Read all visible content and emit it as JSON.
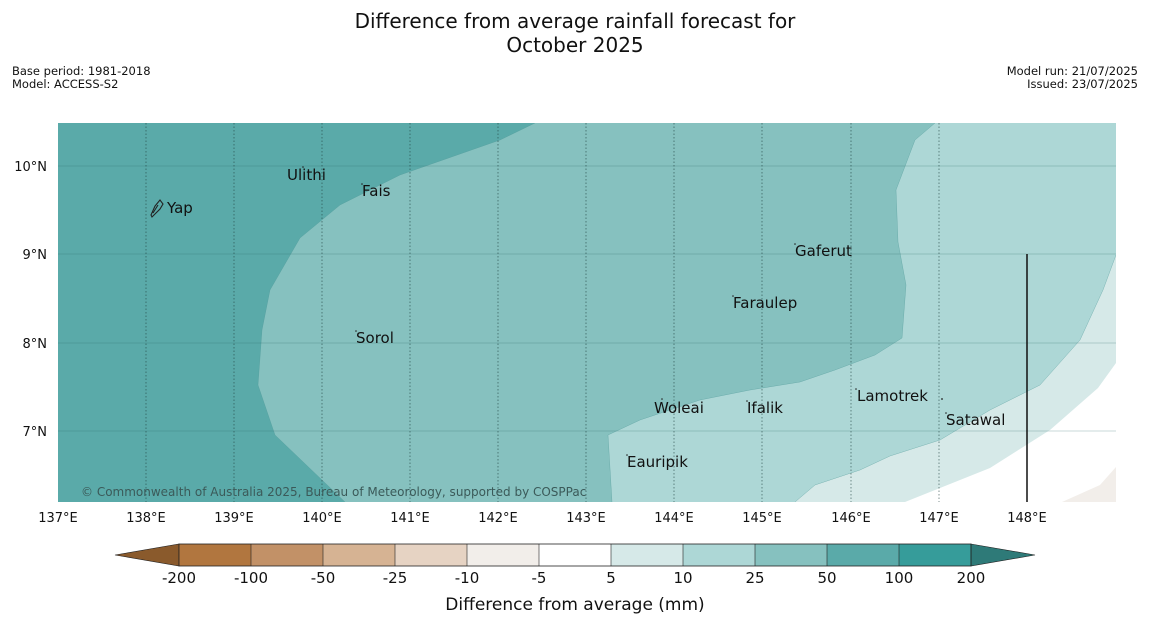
{
  "header": {
    "title_line1": "Difference from average rainfall forecast for",
    "title_line2": "October 2025",
    "base_period": "Base period: 1981-2018",
    "model": "Model: ACCESS-S2",
    "model_run": "Model run: 21/07/2025",
    "issued": "Issued: 23/07/2025"
  },
  "map": {
    "copyright": "© Commonwealth of Australia 2025, Bureau of Meteorology, supported by COSPPac",
    "lat_labels": [
      "10°N",
      "9°N",
      "8°N",
      "7°N"
    ],
    "lon_labels": [
      "137°E",
      "138°E",
      "139°E",
      "140°E",
      "141°E",
      "142°E",
      "143°E",
      "144°E",
      "145°E",
      "146°E",
      "147°E",
      "148°E"
    ],
    "places": [
      {
        "name": "Yap"
      },
      {
        "name": "Ulithi"
      },
      {
        "name": "Fais"
      },
      {
        "name": "Gaferut"
      },
      {
        "name": "Faraulep"
      },
      {
        "name": "Sorol"
      },
      {
        "name": "Lamotrek"
      },
      {
        "name": "Woleai"
      },
      {
        "name": "Ifalik"
      },
      {
        "name": "Satawal"
      },
      {
        "name": "Eauripik"
      }
    ]
  },
  "legend": {
    "title": "Difference from average (mm)",
    "ticks": [
      "-200",
      "-100",
      "-50",
      "-25",
      "-10",
      "-5",
      "5",
      "10",
      "25",
      "50",
      "100",
      "200"
    ],
    "colors": {
      "lt_-200": "#8a5a2c",
      "-200_-100": "#b1763f",
      "-100_-50": "#c29167",
      "-50_-25": "#d6b393",
      "-25_-10": "#e6d3c3",
      "-10_-5": "#f2eeea",
      "-5_5": "#ffffff",
      "5_10": "#d6e9e8",
      "10_25": "#add7d6",
      "25_50": "#86c1bf",
      "50_100": "#5aaaa9",
      "100_200": "#369c9a",
      "gt_200": "#2e7a78"
    }
  }
}
